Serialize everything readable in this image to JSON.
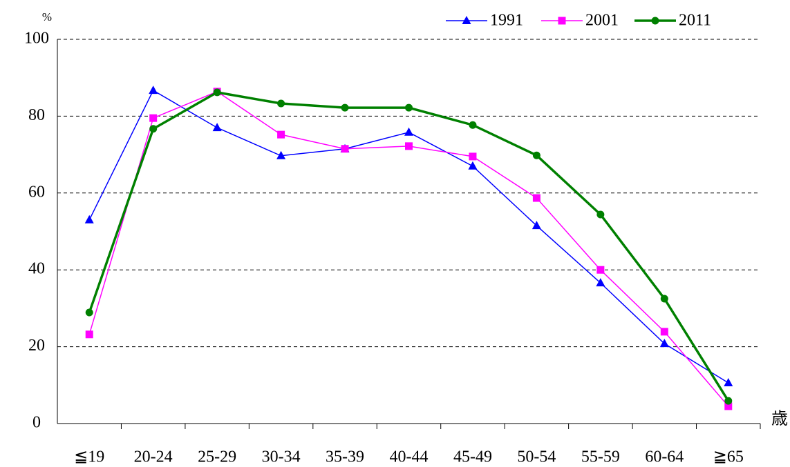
{
  "chart_data": {
    "type": "line",
    "y_label": "%",
    "x_label": "歳",
    "categories": [
      "≦19",
      "20-24",
      "25-29",
      "30-34",
      "35-39",
      "40-44",
      "45-49",
      "50-54",
      "55-59",
      "60-64",
      "≧65"
    ],
    "series": [
      {
        "name": "1991",
        "color": "#0000ff",
        "marker": "triangle",
        "values": [
          53.0,
          86.7,
          77.0,
          69.7,
          71.5,
          75.8,
          67.0,
          51.5,
          36.6,
          20.8,
          10.6
        ]
      },
      {
        "name": "2001",
        "color": "#ff00ff",
        "marker": "square",
        "values": [
          23.2,
          79.5,
          86.4,
          75.2,
          71.5,
          72.2,
          69.5,
          58.7,
          40.0,
          23.9,
          4.5
        ]
      },
      {
        "name": "2011",
        "color": "#008000",
        "marker": "circle",
        "values": [
          28.9,
          76.7,
          86.2,
          83.3,
          82.2,
          82.2,
          77.7,
          69.8,
          54.4,
          32.5,
          5.9
        ]
      }
    ],
    "ylim": [
      0,
      100
    ],
    "yticks": [
      0,
      20,
      40,
      60,
      80,
      100
    ],
    "grid": true,
    "legend": "top-right"
  }
}
